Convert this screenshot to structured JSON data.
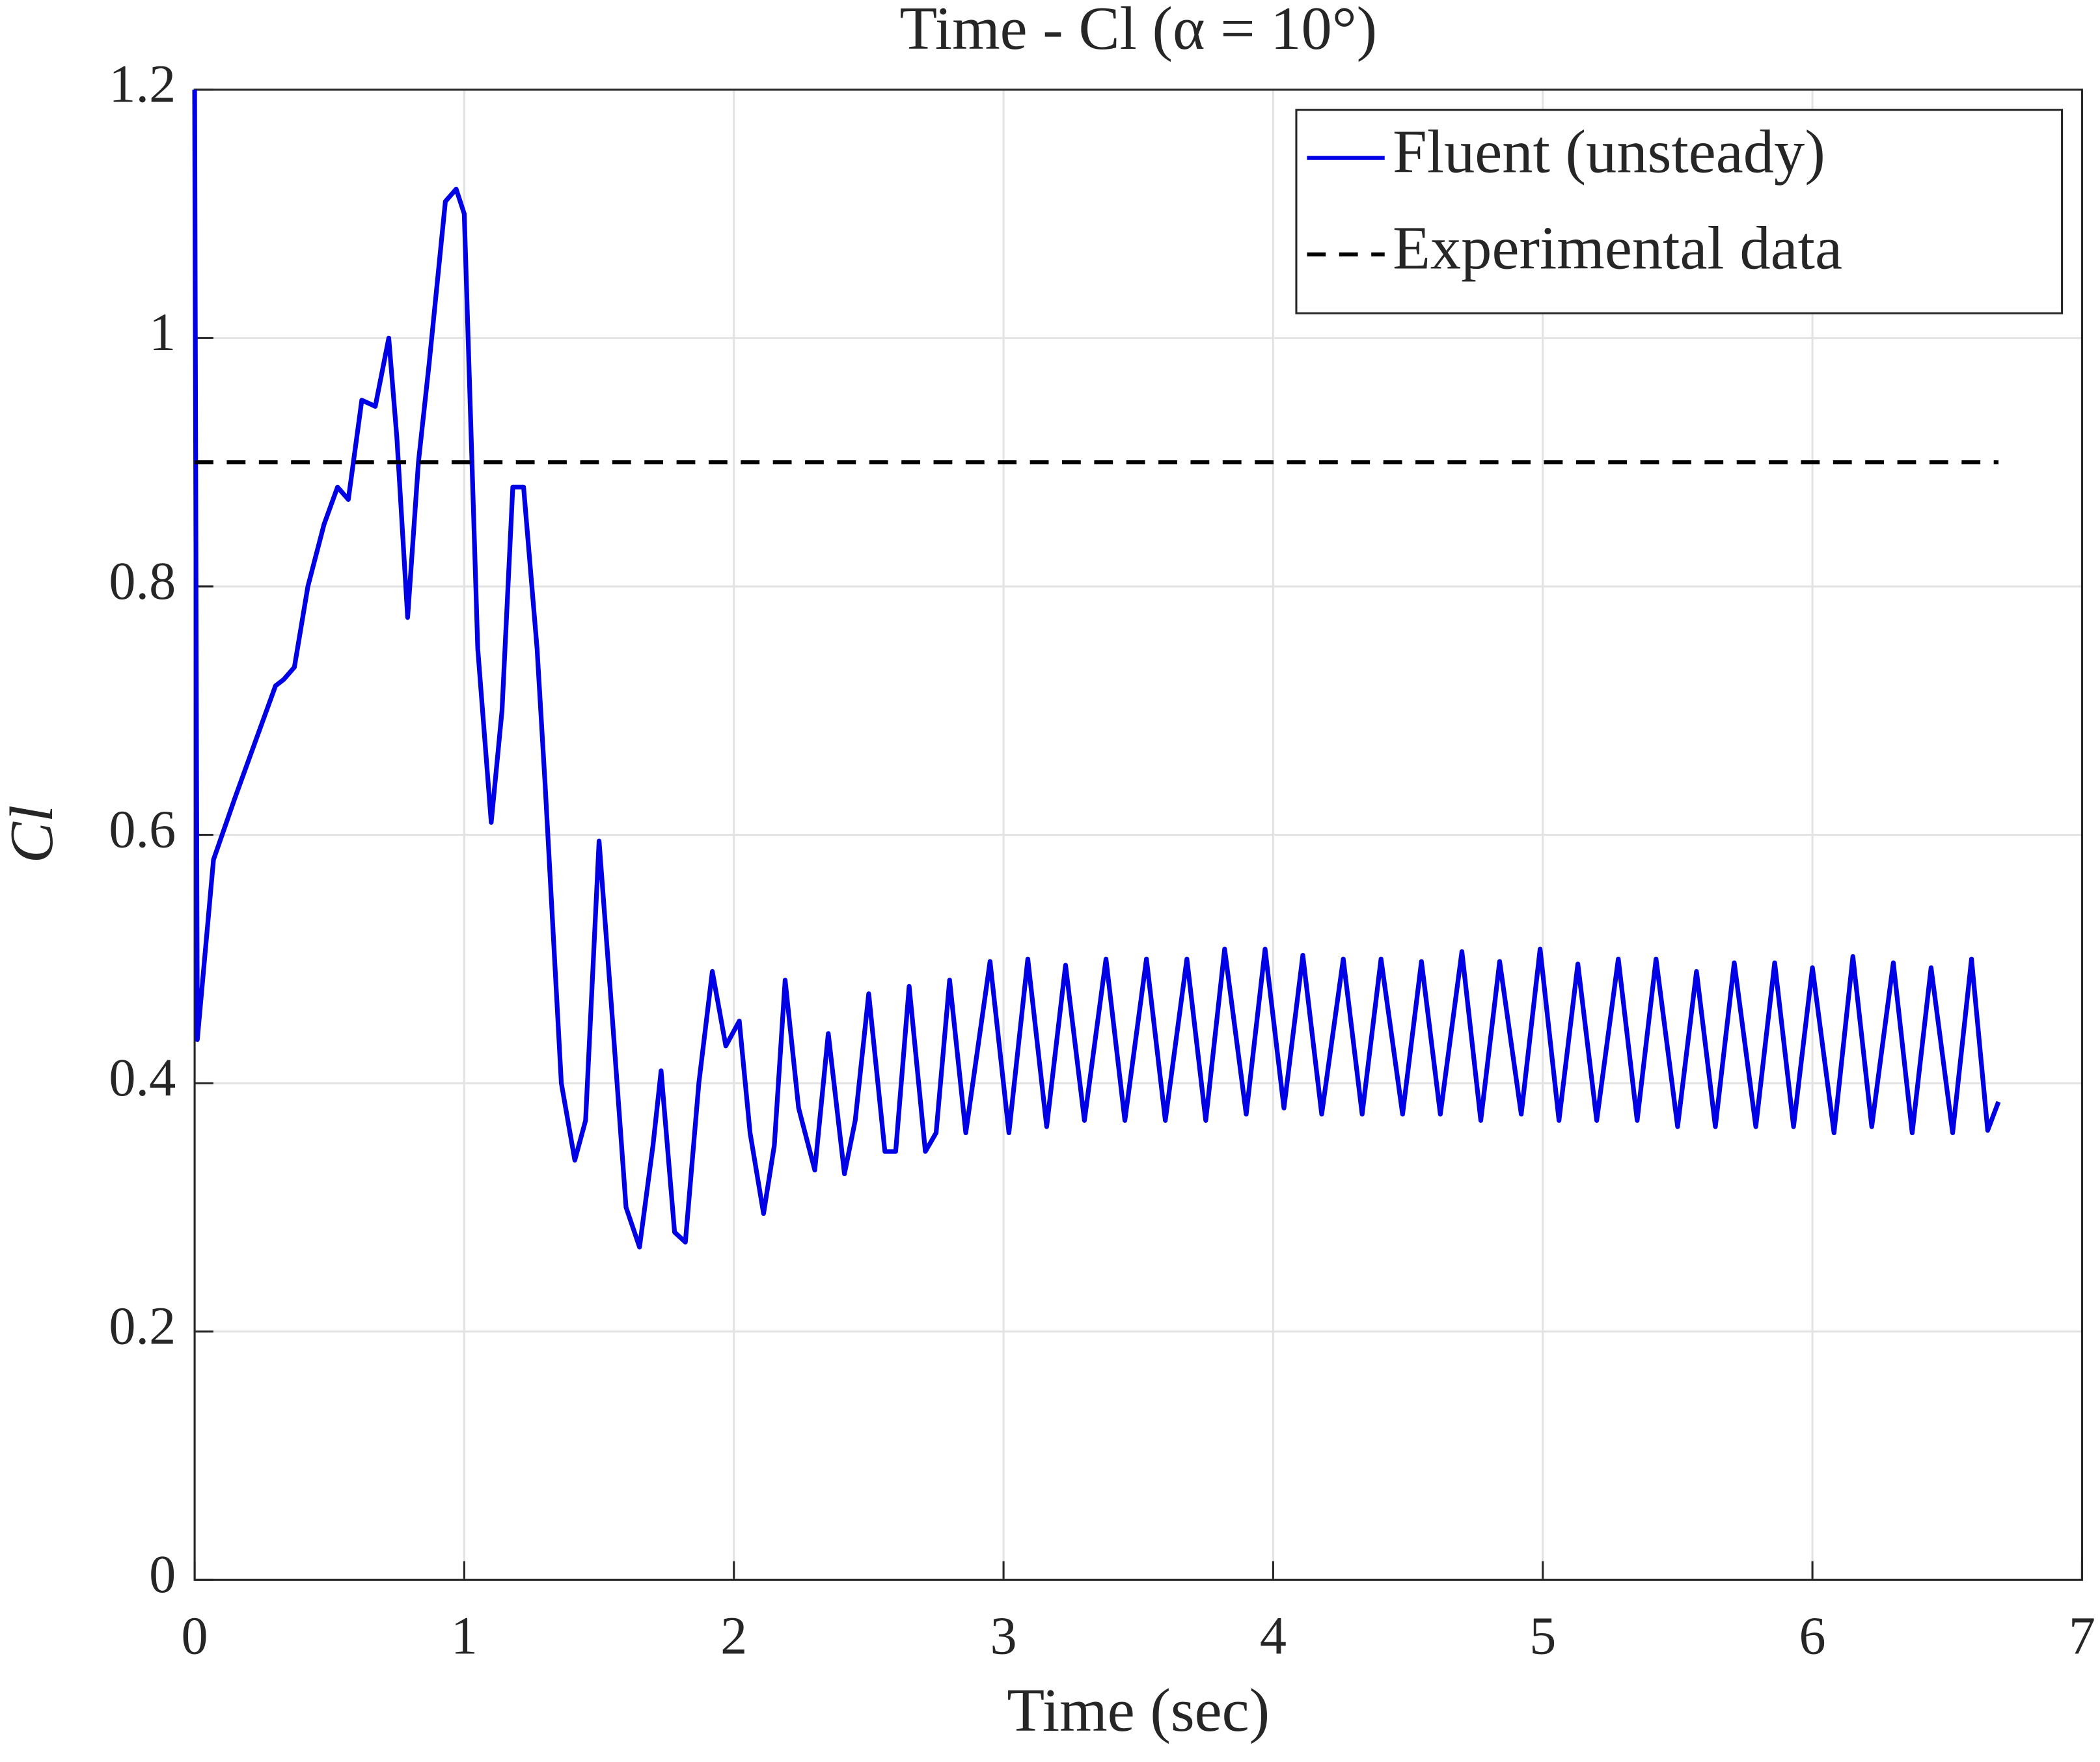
{
  "chart_data": {
    "type": "line",
    "title": "Time - Cl (α = 10°)",
    "xlabel": "Time (sec)",
    "ylabel": "Cl",
    "xlim": [
      0,
      7
    ],
    "ylim": [
      0,
      1.2
    ],
    "xticks": [
      0,
      1,
      2,
      3,
      4,
      5,
      6,
      7
    ],
    "yticks": [
      0,
      0.2,
      0.4,
      0.6,
      0.8,
      1,
      1.2
    ],
    "grid": true,
    "legend": "northeast",
    "series": [
      {
        "name": "Fluent (unsteady)",
        "color": "#0000e6",
        "dash": false,
        "x": [
          0,
          0.01,
          0.07,
          0.15,
          0.25,
          0.3,
          0.33,
          0.37,
          0.42,
          0.48,
          0.53,
          0.57,
          0.62,
          0.67,
          0.72,
          0.75,
          0.79,
          0.83,
          0.87,
          0.93,
          0.97,
          1.0,
          1.05,
          1.1,
          1.14,
          1.18,
          1.22,
          1.27,
          1.3,
          1.36,
          1.41,
          1.45,
          1.5,
          1.55,
          1.6,
          1.65,
          1.7,
          1.73,
          1.78,
          1.82,
          1.87,
          1.92,
          1.97,
          2.02,
          2.06,
          2.11,
          2.15,
          2.19,
          2.24,
          2.3,
          2.35,
          2.41,
          2.45,
          2.5,
          2.56,
          2.6,
          2.65,
          2.71,
          2.75,
          2.8,
          2.86,
          2.95,
          3.02,
          3.09,
          3.16,
          3.23,
          3.3,
          3.38,
          3.45,
          3.53,
          3.6,
          3.68,
          3.75,
          3.82,
          3.9,
          3.97,
          4.04,
          4.11,
          4.18,
          4.26,
          4.33,
          4.4,
          4.48,
          4.55,
          4.62,
          4.7,
          4.77,
          4.84,
          4.92,
          4.99,
          5.06,
          5.13,
          5.2,
          5.28,
          5.35,
          5.42,
          5.5,
          5.57,
          5.64,
          5.71,
          5.79,
          5.86,
          5.93,
          6.0,
          6.08,
          6.15,
          6.22,
          6.3,
          6.37,
          6.44,
          6.52,
          6.59,
          6.65,
          6.69
        ],
        "values": [
          1.2,
          0.435,
          0.58,
          0.63,
          0.69,
          0.72,
          0.725,
          0.735,
          0.8,
          0.85,
          0.88,
          0.87,
          0.95,
          0.945,
          1.0,
          0.92,
          0.775,
          0.9,
          0.98,
          1.11,
          1.12,
          1.1,
          0.75,
          0.61,
          0.7,
          0.88,
          0.88,
          0.75,
          0.64,
          0.4,
          0.338,
          0.37,
          0.595,
          0.45,
          0.3,
          0.268,
          0.35,
          0.41,
          0.28,
          0.272,
          0.4,
          0.49,
          0.43,
          0.45,
          0.36,
          0.295,
          0.35,
          0.483,
          0.38,
          0.33,
          0.44,
          0.327,
          0.37,
          0.472,
          0.345,
          0.345,
          0.478,
          0.345,
          0.36,
          0.483,
          0.36,
          0.498,
          0.36,
          0.5,
          0.365,
          0.495,
          0.37,
          0.5,
          0.37,
          0.5,
          0.37,
          0.5,
          0.37,
          0.508,
          0.375,
          0.508,
          0.38,
          0.503,
          0.375,
          0.5,
          0.375,
          0.5,
          0.375,
          0.498,
          0.375,
          0.506,
          0.37,
          0.498,
          0.375,
          0.508,
          0.37,
          0.496,
          0.37,
          0.5,
          0.37,
          0.5,
          0.365,
          0.49,
          0.365,
          0.497,
          0.365,
          0.497,
          0.365,
          0.493,
          0.36,
          0.502,
          0.365,
          0.497,
          0.36,
          0.493,
          0.36,
          0.5,
          0.362,
          0.385
        ]
      },
      {
        "name": "Experimental data",
        "color": "#000000",
        "dash": true,
        "x": [
          0,
          6.69
        ],
        "values": [
          0.9,
          0.9
        ]
      }
    ]
  }
}
